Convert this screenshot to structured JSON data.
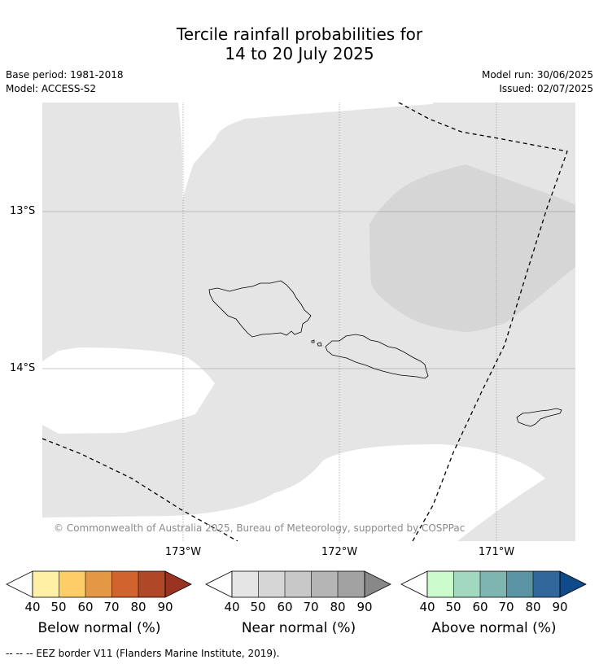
{
  "title_line1": "Tercile rainfall probabilities for",
  "title_line2": "14 to 20 July 2025",
  "meta_left": {
    "base_period": "Base period: 1981-2018",
    "model": "Model: ACCESS-S2"
  },
  "meta_right": {
    "model_run": "Model run: 30/06/2025",
    "issued": "Issued: 02/07/2025"
  },
  "copyright": "© Commonwealth of Australia 2025, Bureau of Meteorology, supported by COSPPac",
  "lat_labels": [
    "13°S",
    "14°S"
  ],
  "lon_labels": [
    "173°W",
    "172°W",
    "171°W"
  ],
  "colorbars": [
    {
      "label": "Below normal (%)",
      "ticks": [
        "40",
        "50",
        "60",
        "70",
        "80",
        "90"
      ],
      "colors": [
        "#fff0a6",
        "#fdcd67",
        "#e49845",
        "#d0632e",
        "#b04727",
        "#9a3322"
      ]
    },
    {
      "label": "Near normal (%)",
      "ticks": [
        "40",
        "50",
        "60",
        "70",
        "80",
        "90"
      ],
      "colors": [
        "#e5e5e5",
        "#d6d6d6",
        "#c8c8c8",
        "#b5b5b5",
        "#a2a2a2",
        "#888888"
      ]
    },
    {
      "label": "Above normal (%)",
      "ticks": [
        "40",
        "50",
        "60",
        "70",
        "80",
        "90"
      ],
      "colors": [
        "#cbfacd",
        "#a3d8c0",
        "#7fb5b1",
        "#5a93a1",
        "#31679a",
        "#0f4a8a"
      ]
    }
  ],
  "legend_colors": {
    "near_40": "#e5e5e5",
    "near_50": "#d6d6d6"
  },
  "footnote": "--  --  -- EEZ border V11 (Flanders Marine Institute, 2019)."
}
